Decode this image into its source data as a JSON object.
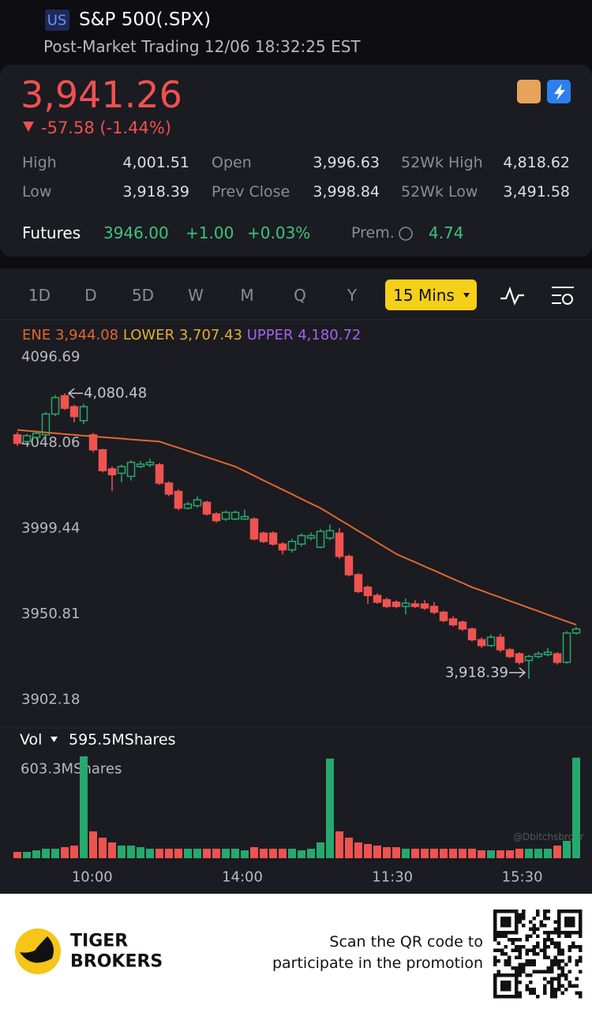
{
  "header": {
    "market": "US",
    "title": "S&P 500(.SPX)",
    "status": "Post-Market Trading 12/06 18:32:25 EST"
  },
  "quote": {
    "price": "3,941.26",
    "change": "-57.58 (-1.44%)",
    "stats": [
      {
        "label": "High",
        "value": "4,001.51"
      },
      {
        "label": "Open",
        "value": "3,996.63"
      },
      {
        "label": "52Wk High",
        "value": "4,818.62"
      },
      {
        "label": "Low",
        "value": "3,918.39"
      },
      {
        "label": "Prev Close",
        "value": "3,998.84"
      },
      {
        "label": "52Wk Low",
        "value": "3,491.58"
      }
    ],
    "futures": {
      "label": "Futures",
      "price": "3946.00",
      "change": "+1.00",
      "percent": "+0.03%",
      "premium_label": "Prem.",
      "premium": "4.74"
    }
  },
  "tabs": {
    "periods": [
      "1D",
      "D",
      "5D",
      "W",
      "M",
      "Q",
      "Y"
    ],
    "active": "15 Mins"
  },
  "chart_data": {
    "type": "candlestick",
    "up_color": "#26a96c",
    "down_color": "#ef5350",
    "indicators": [
      {
        "name": "ENE",
        "value": "3,944.08",
        "color": "#e0682c"
      },
      {
        "name": "LOWER",
        "value": "3,707.43",
        "color": "#e0b030"
      },
      {
        "name": "UPPER",
        "value": "4,180.72",
        "color": "#a463e8"
      }
    ],
    "ylim": [
      3902.18,
      4096.69
    ],
    "yticks": [
      4096.69,
      4048.06,
      3999.44,
      3950.81,
      3902.18
    ],
    "xlim": [
      0,
      59
    ],
    "xticks": [
      {
        "value": 7.9,
        "label": "10:00"
      },
      {
        "value": 23.75,
        "label": "14:00"
      },
      {
        "value": 39.6,
        "label": "11:30"
      },
      {
        "value": 53.3,
        "label": "15:30"
      }
    ],
    "annotations": [
      {
        "index": 5,
        "text": "4,080.48"
      },
      {
        "index": 54,
        "text": "3,918.39"
      }
    ],
    "candles": [
      {
        "o": 4056.9,
        "h": 4058.5,
        "l": 4050.5,
        "c": 4052.1
      },
      {
        "o": 4053.1,
        "h": 4057.5,
        "l": 4052,
        "c": 4056.4
      },
      {
        "o": 4055.5,
        "h": 4059,
        "l": 4054.5,
        "c": 4057.8
      },
      {
        "o": 4056.9,
        "h": 4070,
        "l": 4055.5,
        "c": 4068.7
      },
      {
        "o": 4068.7,
        "h": 4079.5,
        "l": 4067.5,
        "c": 4078.1
      },
      {
        "o": 4079.1,
        "h": 4080.48,
        "l": 4071,
        "c": 4072.0
      },
      {
        "o": 4072.9,
        "h": 4074,
        "l": 4064,
        "c": 4067.3
      },
      {
        "o": 4064.9,
        "h": 4074.5,
        "l": 4063,
        "c": 4072.9
      },
      {
        "o": 4056.9,
        "h": 4058,
        "l": 4047,
        "c": 4048.4
      },
      {
        "o": 4048.4,
        "h": 4049,
        "l": 4035.5,
        "c": 4036.6
      },
      {
        "o": 4037.6,
        "h": 4039,
        "l": 4025,
        "c": 4034.3
      },
      {
        "o": 4035.1,
        "h": 4040,
        "l": 4030,
        "c": 4038.9
      },
      {
        "o": 4033.3,
        "h": 4042.5,
        "l": 4031,
        "c": 4041.3
      },
      {
        "o": 4038.9,
        "h": 4042,
        "l": 4038,
        "c": 4040.3
      },
      {
        "o": 4039.9,
        "h": 4043.5,
        "l": 4038.5,
        "c": 4041.3
      },
      {
        "o": 4039.9,
        "h": 4041,
        "l": 4028.5,
        "c": 4029.5
      },
      {
        "o": 4029.5,
        "h": 4030.5,
        "l": 4022,
        "c": 4023.3
      },
      {
        "o": 4024.8,
        "h": 4026,
        "l": 4014,
        "c": 4015.3
      },
      {
        "o": 4015.3,
        "h": 4019,
        "l": 4014.5,
        "c": 4017.6
      },
      {
        "o": 4016.7,
        "h": 4022,
        "l": 4015.5,
        "c": 4020
      },
      {
        "o": 4018.6,
        "h": 4019.5,
        "l": 4011,
        "c": 4012
      },
      {
        "o": 4012,
        "h": 4013,
        "l": 4007,
        "c": 4008.2
      },
      {
        "o": 4009.1,
        "h": 4014,
        "l": 4008,
        "c": 4012.9
      },
      {
        "o": 4009.1,
        "h": 4014,
        "l": 4008.5,
        "c": 4012.9
      },
      {
        "o": 4009.1,
        "h": 4014.5,
        "l": 4008.5,
        "c": 4010.5
      },
      {
        "o": 4009.1,
        "h": 4010,
        "l": 3997,
        "c": 3997.8
      },
      {
        "o": 4001.1,
        "h": 4002,
        "l": 3995.5,
        "c": 3996.4
      },
      {
        "o": 4001.1,
        "h": 4002,
        "l": 3994,
        "c": 3994.9
      },
      {
        "o": 3994.9,
        "h": 3996,
        "l": 3989,
        "c": 3991.6
      },
      {
        "o": 3991.6,
        "h": 3998,
        "l": 3990,
        "c": 3996.4
      },
      {
        "o": 3994.9,
        "h": 4001,
        "l": 3993.5,
        "c": 3999.7
      },
      {
        "o": 3998.3,
        "h": 4001.5,
        "l": 3997,
        "c": 3999.7
      },
      {
        "o": 3993.1,
        "h": 4003.5,
        "l": 3992.5,
        "c": 4002.1
      },
      {
        "o": 3998.3,
        "h": 4006,
        "l": 3997,
        "c": 4002.5
      },
      {
        "o": 4001.1,
        "h": 4004,
        "l": 3986.5,
        "c": 3987.9
      },
      {
        "o": 3987.9,
        "h": 3989,
        "l": 3976.5,
        "c": 3977.5
      },
      {
        "o": 3977.5,
        "h": 3978.5,
        "l": 3967,
        "c": 3968.0
      },
      {
        "o": 3970.4,
        "h": 3971.5,
        "l": 3961,
        "c": 3965.7
      },
      {
        "o": 3965.7,
        "h": 3967,
        "l": 3961,
        "c": 3961.9
      },
      {
        "o": 3963.3,
        "h": 3964.5,
        "l": 3958.5,
        "c": 3959.5
      },
      {
        "o": 3961.9,
        "h": 3963,
        "l": 3958.5,
        "c": 3959.5
      },
      {
        "o": 3959.5,
        "h": 3964,
        "l": 3955,
        "c": 3961.4
      },
      {
        "o": 3960.9,
        "h": 3963,
        "l": 3958.5,
        "c": 3959.5
      },
      {
        "o": 3960.9,
        "h": 3963,
        "l": 3957.5,
        "c": 3958.6
      },
      {
        "o": 3959.5,
        "h": 3962,
        "l": 3955,
        "c": 3956.2
      },
      {
        "o": 3956.2,
        "h": 3957,
        "l": 3950.5,
        "c": 3951.5
      },
      {
        "o": 3952.4,
        "h": 3954,
        "l": 3948,
        "c": 3949.1
      },
      {
        "o": 3950.6,
        "h": 3951.5,
        "l": 3945.5,
        "c": 3946.7
      },
      {
        "o": 3946.7,
        "h": 3947.5,
        "l": 3939.5,
        "c": 3940.6
      },
      {
        "o": 3940.6,
        "h": 3942,
        "l": 3936,
        "c": 3937.3
      },
      {
        "o": 3937.3,
        "h": 3943.5,
        "l": 3936.5,
        "c": 3942
      },
      {
        "o": 3942,
        "h": 3944,
        "l": 3933.5,
        "c": 3934.9
      },
      {
        "o": 3934.9,
        "h": 3936,
        "l": 3930,
        "c": 3931.1
      },
      {
        "o": 3932.6,
        "h": 3933.5,
        "l": 3926.5,
        "c": 3927.8
      },
      {
        "o": 3928.8,
        "h": 3932,
        "l": 3918.39,
        "c": 3931.1
      },
      {
        "o": 3931.1,
        "h": 3934,
        "l": 3930,
        "c": 3932.6
      },
      {
        "o": 3932.1,
        "h": 3936,
        "l": 3931,
        "c": 3933.5
      },
      {
        "o": 3932.6,
        "h": 3933.5,
        "l": 3926.5,
        "c": 3927.8
      },
      {
        "o": 3927.8,
        "h": 3945.5,
        "l": 3927,
        "c": 3944.4
      },
      {
        "o": 3944.4,
        "h": 3948,
        "l": 3943.5,
        "c": 3946.7
      }
    ],
    "ene": [
      4059.7,
      4059.2,
      4058.8,
      4058.3,
      4057.8,
      4057.3,
      4056.9,
      4056.4,
      4056.0,
      4055.6,
      4055.2,
      4054.8,
      4054.3,
      4053.9,
      4053.5,
      4053.1,
      4051.3,
      4049.6,
      4047.8,
      4046.0,
      4044.2,
      4042.5,
      4040.7,
      4038.9,
      4036.3,
      4033.7,
      4031.0,
      4028.4,
      4025.8,
      4023.2,
      4020.5,
      4017.9,
      4015.3,
      4012.1,
      4008.8,
      4005.6,
      4002.3,
      3999.1,
      3995.8,
      3992.6,
      3989.3,
      3986.9,
      3984.6,
      3982.2,
      3979.9,
      3977.5,
      3975.1,
      3972.8,
      3970.4,
      3968.5,
      3966.5,
      3964.6,
      3962.6,
      3960.7,
      3958.7,
      3956.8,
      3954.8,
      3952.9,
      3951.0,
      3949.1
    ],
    "volume": {
      "label": "Vol",
      "current": "595.5MShares",
      "ylim": [
        0,
        603.3
      ],
      "yticks": [
        {
          "value": 603.3,
          "label": "603.3MShares"
        }
      ],
      "values": [
        37.4,
        37.4,
        46.8,
        56.1,
        56.1,
        65.5,
        74.8,
        603.3,
        159.0,
        121.6,
        93.5,
        74.8,
        74.8,
        65.5,
        56.1,
        56.1,
        56.1,
        56.1,
        56.1,
        56.1,
        56.1,
        56.1,
        56.1,
        56.1,
        46.8,
        65.5,
        56.1,
        56.1,
        56.1,
        56.1,
        46.8,
        56.1,
        93.5,
        590.0,
        159.0,
        121.6,
        93.5,
        84.2,
        74.8,
        65.5,
        65.5,
        56.1,
        56.1,
        56.1,
        56.1,
        56.1,
        56.1,
        56.1,
        56.1,
        46.8,
        46.8,
        46.8,
        46.8,
        56.1,
        56.1,
        56.1,
        56.1,
        74.8,
        102.9,
        595.5
      ]
    },
    "watermark": "@Dbitchsbrger"
  },
  "footer": {
    "brand": [
      "TIGER",
      "BROKERS"
    ],
    "promo": [
      "Scan the QR code to",
      "participate in the promotion"
    ]
  }
}
